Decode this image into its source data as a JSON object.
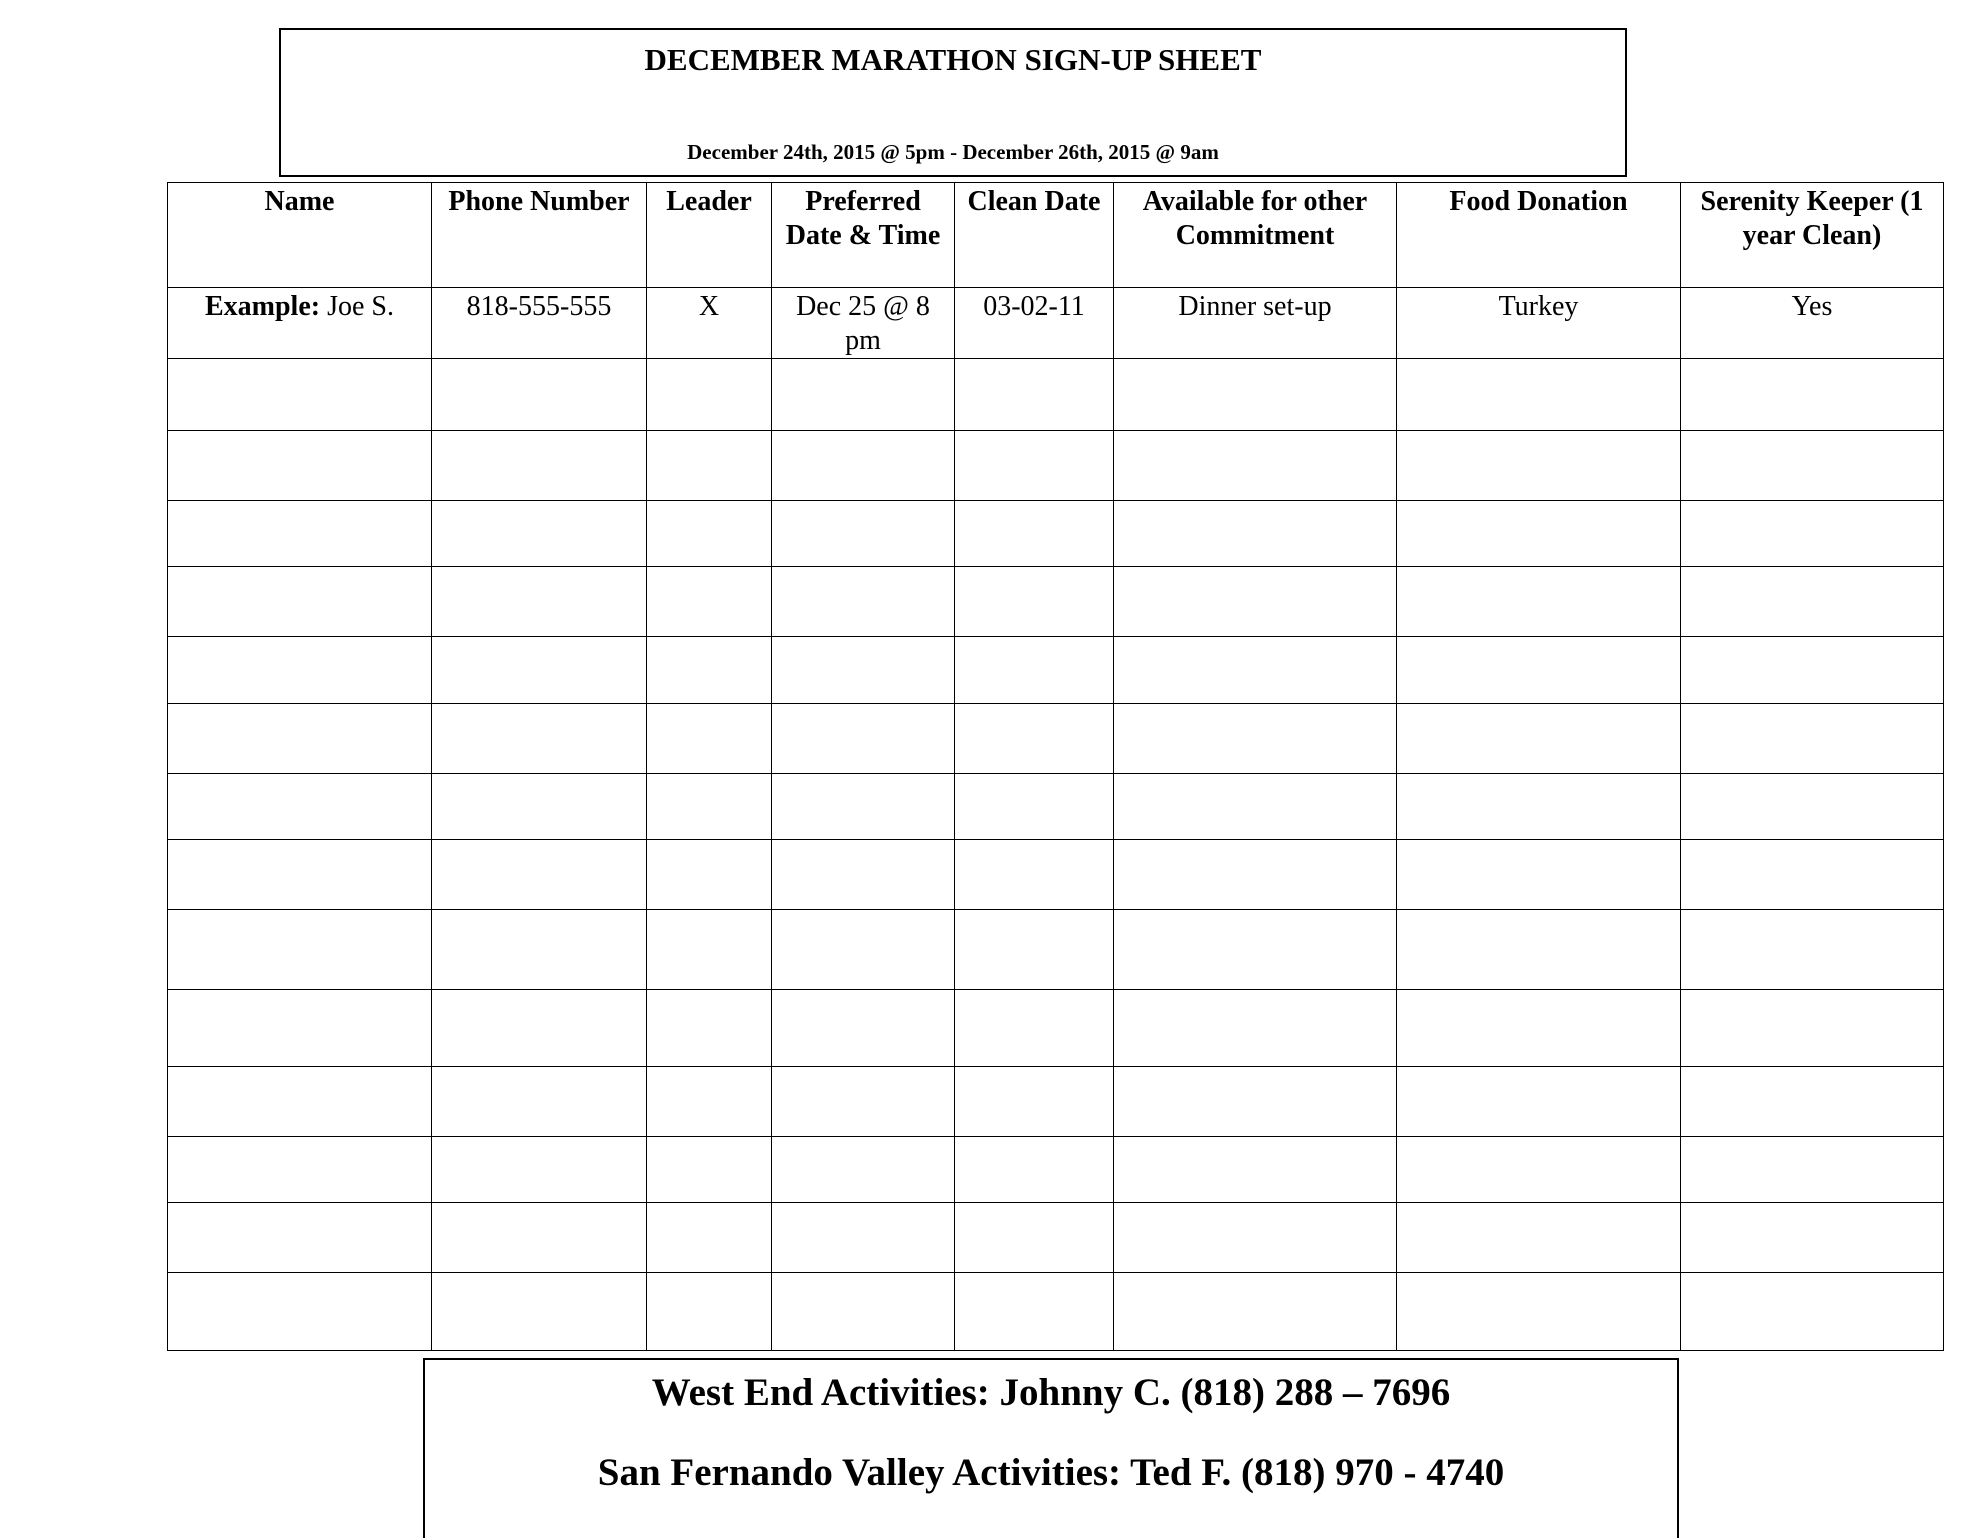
{
  "header": {
    "title": "DECEMBER MARATHON SIGN-UP SHEET",
    "subtitle": "December 24th, 2015 @ 5pm - December 26th, 2015 @ 9am"
  },
  "table": {
    "columns": [
      "Name",
      "Phone Number",
      "Leader",
      "Preferred Date & Time",
      "Clean Date",
      "Available for other Commitment",
      "Food Donation",
      "Serenity Keeper (1 year Clean)"
    ],
    "example": {
      "label": "Example:",
      "name": "Joe S.",
      "phone": "818-555-555",
      "leader": "X",
      "preferred": "Dec 25 @ 8 pm",
      "clean_date": "03-02-11",
      "available": "Dinner set-up",
      "food": "Turkey",
      "serenity": "Yes"
    },
    "blank_rows": 14
  },
  "footer": {
    "line1": "West End Activities: Johnny C. (818) 288 – 7696",
    "line2": "San Fernando Valley Activities: Ted F. (818) 970 - 4740"
  }
}
